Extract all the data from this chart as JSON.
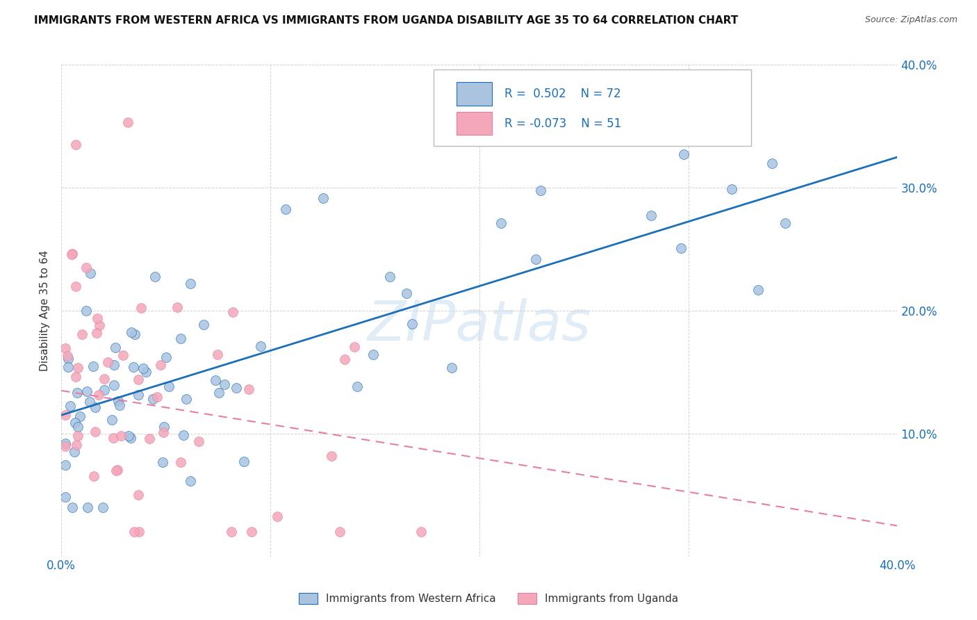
{
  "title": "IMMIGRANTS FROM WESTERN AFRICA VS IMMIGRANTS FROM UGANDA DISABILITY AGE 35 TO 64 CORRELATION CHART",
  "source": "Source: ZipAtlas.com",
  "ylabel": "Disability Age 35 to 64",
  "x_min": 0.0,
  "x_max": 0.4,
  "y_min": 0.0,
  "y_max": 0.4,
  "x_ticks": [
    0.0,
    0.1,
    0.2,
    0.3,
    0.4
  ],
  "x_tick_labels": [
    "0.0%",
    "",
    "",
    "",
    "40.0%"
  ],
  "y_ticks": [
    0.0,
    0.1,
    0.2,
    0.3,
    0.4
  ],
  "y_tick_labels_right": [
    "",
    "10.0%",
    "20.0%",
    "30.0%",
    "40.0%"
  ],
  "legend_label_blue": "Immigrants from Western Africa",
  "legend_label_pink": "Immigrants from Uganda",
  "R_blue": "0.502",
  "N_blue": "72",
  "R_pink": "-0.073",
  "N_pink": "51",
  "blue_color": "#aac4e0",
  "pink_color": "#f4a7b9",
  "blue_line_color": "#1a6fba",
  "pink_line_color": "#e87da0",
  "watermark": "ZIPatlas",
  "blue_line_y_start": 0.115,
  "blue_line_y_end": 0.325,
  "pink_line_y_start": 0.135,
  "pink_line_y_end": 0.025,
  "blue_seed": 10,
  "pink_seed": 20
}
